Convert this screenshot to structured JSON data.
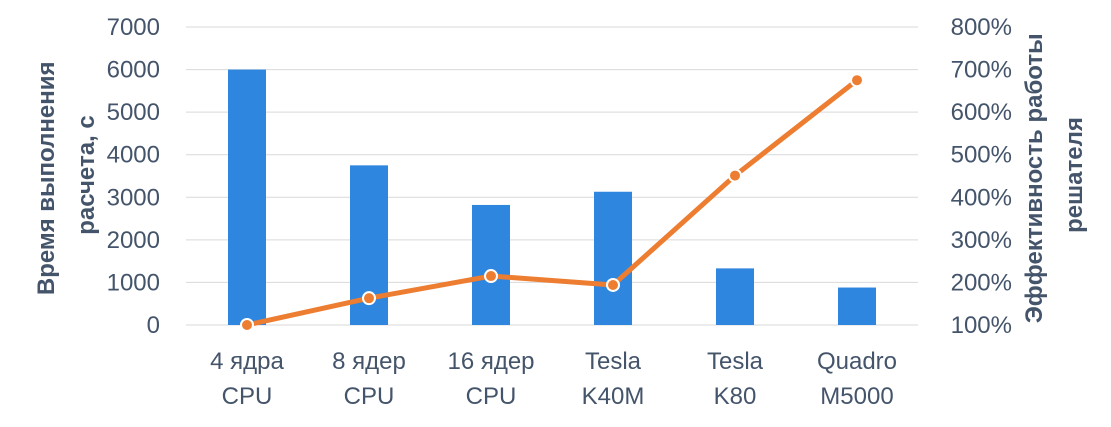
{
  "chart_data": {
    "type": "bar",
    "categories": [
      [
        "4 ядра",
        "CPU"
      ],
      [
        "8 ядер",
        "CPU"
      ],
      [
        "16 ядер",
        "CPU"
      ],
      [
        "Tesla",
        "K40M"
      ],
      [
        "Tesla",
        "K80"
      ],
      [
        "Quadro",
        "M5000"
      ]
    ],
    "series": [
      {
        "type": "bar",
        "axis": "left",
        "color": "#2e86de",
        "values": [
          6000,
          3750,
          2820,
          3130,
          1330,
          880
        ]
      },
      {
        "type": "line",
        "axis": "right",
        "color": "#ed7d31",
        "values": [
          100,
          163,
          215,
          194,
          451,
          675
        ]
      }
    ],
    "ylabel_left": [
      "Время выполнения",
      "расчета, с"
    ],
    "ylabel_right": [
      "Эффективность работы",
      "решателя"
    ],
    "ylim_left": [
      0,
      7000
    ],
    "ylim_right": [
      100,
      800
    ],
    "yticks_left": [
      "0",
      "1000",
      "2000",
      "3000",
      "4000",
      "5000",
      "6000",
      "7000"
    ],
    "yticks_right": [
      "100%",
      "200%",
      "300%",
      "400%",
      "500%",
      "600%",
      "700%",
      "800%"
    ],
    "grid": true
  }
}
